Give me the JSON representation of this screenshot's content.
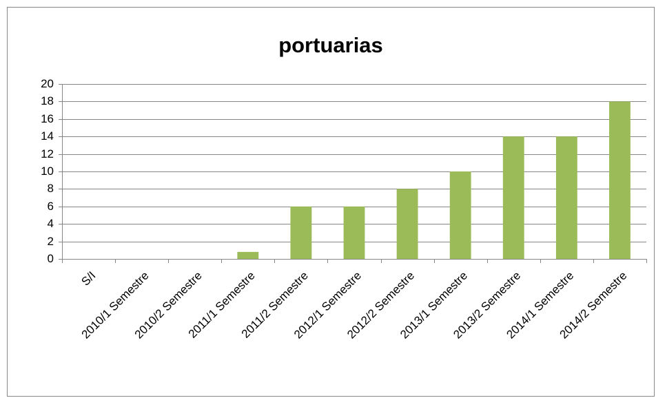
{
  "chart_data": {
    "type": "bar",
    "title": "portuarias",
    "categories": [
      "S/I",
      "2010/1 Semestre",
      "2010/2 Semestre",
      "2011/1 Semestre",
      "2011/2 Semestre",
      "2012/1 Semestre",
      "2012/2 Semestre",
      "2013/1 Semestre",
      "2013/2 Semestre",
      "2014/1 Semestre",
      "2014/2 Semestre"
    ],
    "values": [
      0,
      0,
      0,
      0.8,
      6,
      6,
      8,
      10,
      14,
      14,
      18
    ],
    "color": "#9bbb59",
    "ylim": [
      0,
      20
    ],
    "yticks": [
      0,
      2,
      4,
      6,
      8,
      10,
      12,
      14,
      16,
      18,
      20
    ],
    "grid": true
  }
}
